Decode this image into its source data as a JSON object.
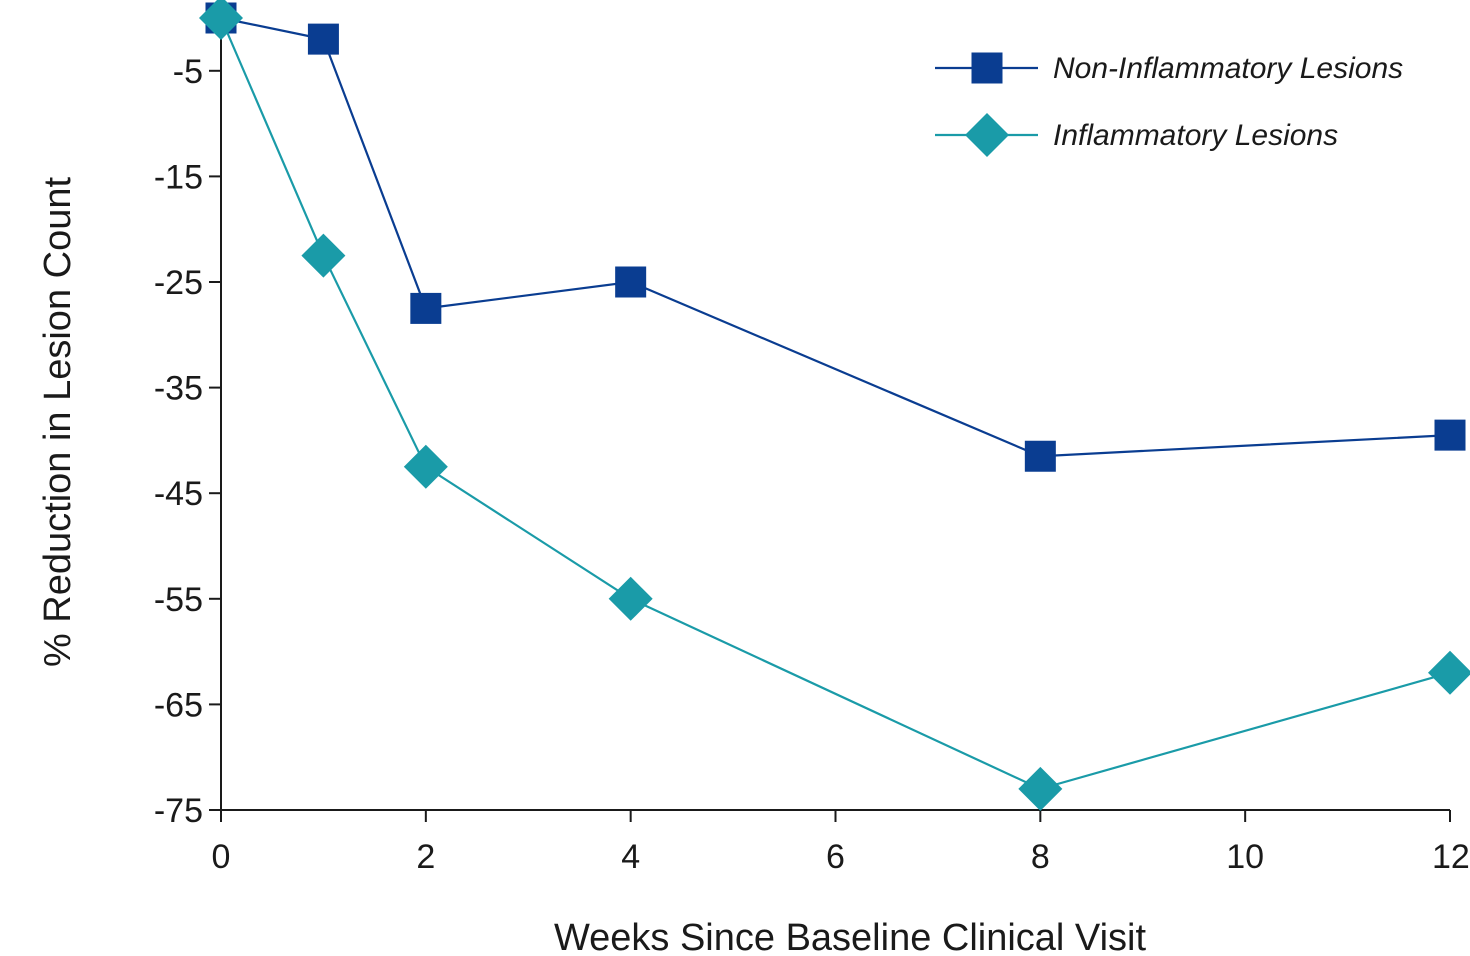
{
  "chart_data": {
    "type": "line",
    "xlabel": "Weeks Since Baseline Clinical Visit",
    "ylabel": "% Reduction in Lesion Count",
    "xlim": [
      0,
      12
    ],
    "ylim": [
      -75,
      0
    ],
    "xticks": [
      0,
      2,
      4,
      6,
      8,
      10,
      12
    ],
    "xtick_labels": [
      "0",
      "2",
      "4",
      "6",
      "8",
      "10",
      "12"
    ],
    "yticks": [
      -5,
      -15,
      -25,
      -35,
      -45,
      -55,
      -65,
      -75
    ],
    "ytick_labels": [
      "-5",
      "-15",
      "-25",
      "-35",
      "-45",
      "-55",
      "-65",
      "-75"
    ],
    "grid": false,
    "legend_position": "top-right",
    "series": [
      {
        "name": "Non-Inflammatory Lesions",
        "color": "#0a3d91",
        "marker": "square",
        "x": [
          0,
          1,
          2,
          4,
          8,
          12
        ],
        "y": [
          0,
          -2,
          -27.5,
          -25,
          -41.5,
          -39.5
        ]
      },
      {
        "name": "Inflammatory Lesions",
        "color": "#1a9ba8",
        "marker": "diamond",
        "x": [
          0,
          1,
          2,
          4,
          8,
          12
        ],
        "y": [
          0,
          -22.5,
          -42.5,
          -55,
          -73,
          -62
        ]
      }
    ]
  }
}
